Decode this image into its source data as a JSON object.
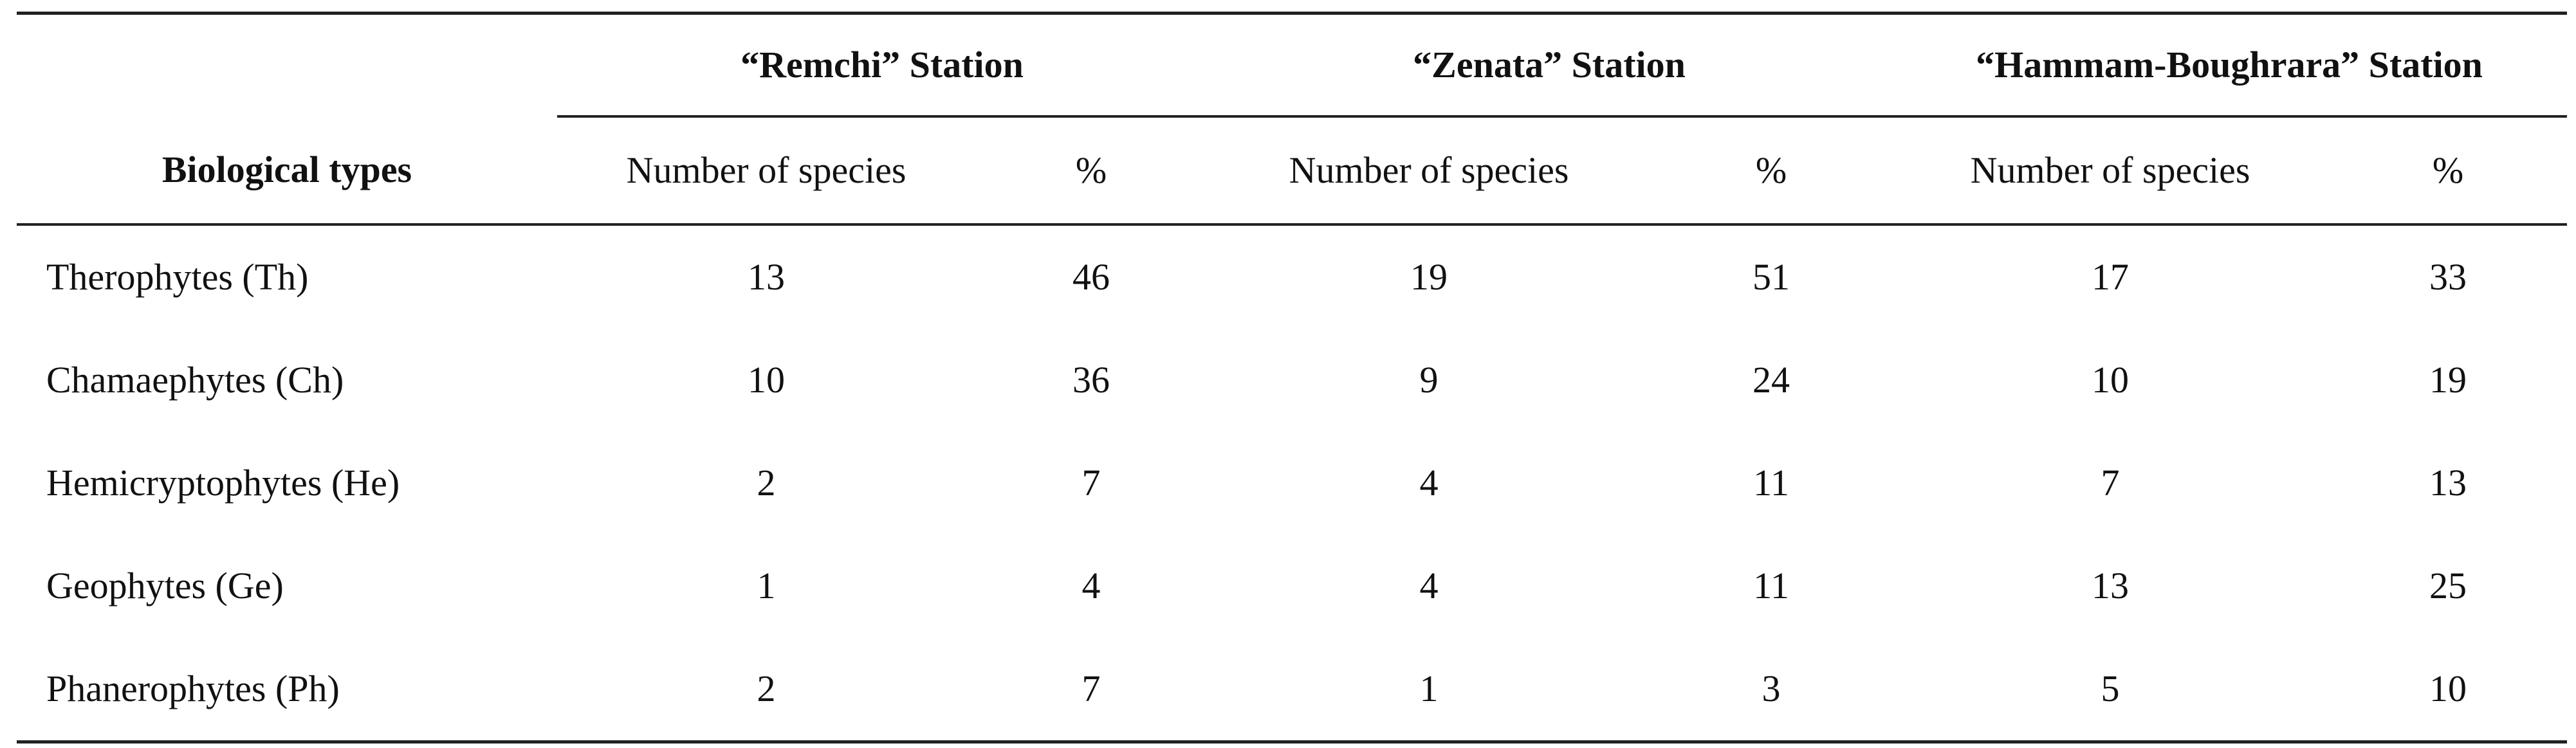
{
  "table": {
    "stations": [
      "“Remchi” Station",
      "“Zenata” Station",
      "“Hammam-Boughrara” Station"
    ],
    "headers": {
      "biological_types": "Biological types",
      "number_of_species": "Number of species",
      "percent": "%"
    },
    "rows": [
      {
        "type": "Therophytes (Th)",
        "values": [
          "13",
          "46",
          "19",
          "51",
          "17",
          "33"
        ]
      },
      {
        "type": "Chamaephytes (Ch)",
        "values": [
          "10",
          "36",
          "9",
          "24",
          "10",
          "19"
        ]
      },
      {
        "type": "Hemicryptophytes (He)",
        "values": [
          "2",
          "7",
          "4",
          "11",
          "7",
          "13"
        ]
      },
      {
        "type": "Geophytes (Ge)",
        "values": [
          "1",
          "4",
          "4",
          "11",
          "13",
          "25"
        ]
      },
      {
        "type": "Phanerophytes (Ph)",
        "values": [
          "2",
          "7",
          "1",
          "3",
          "5",
          "10"
        ]
      }
    ]
  }
}
